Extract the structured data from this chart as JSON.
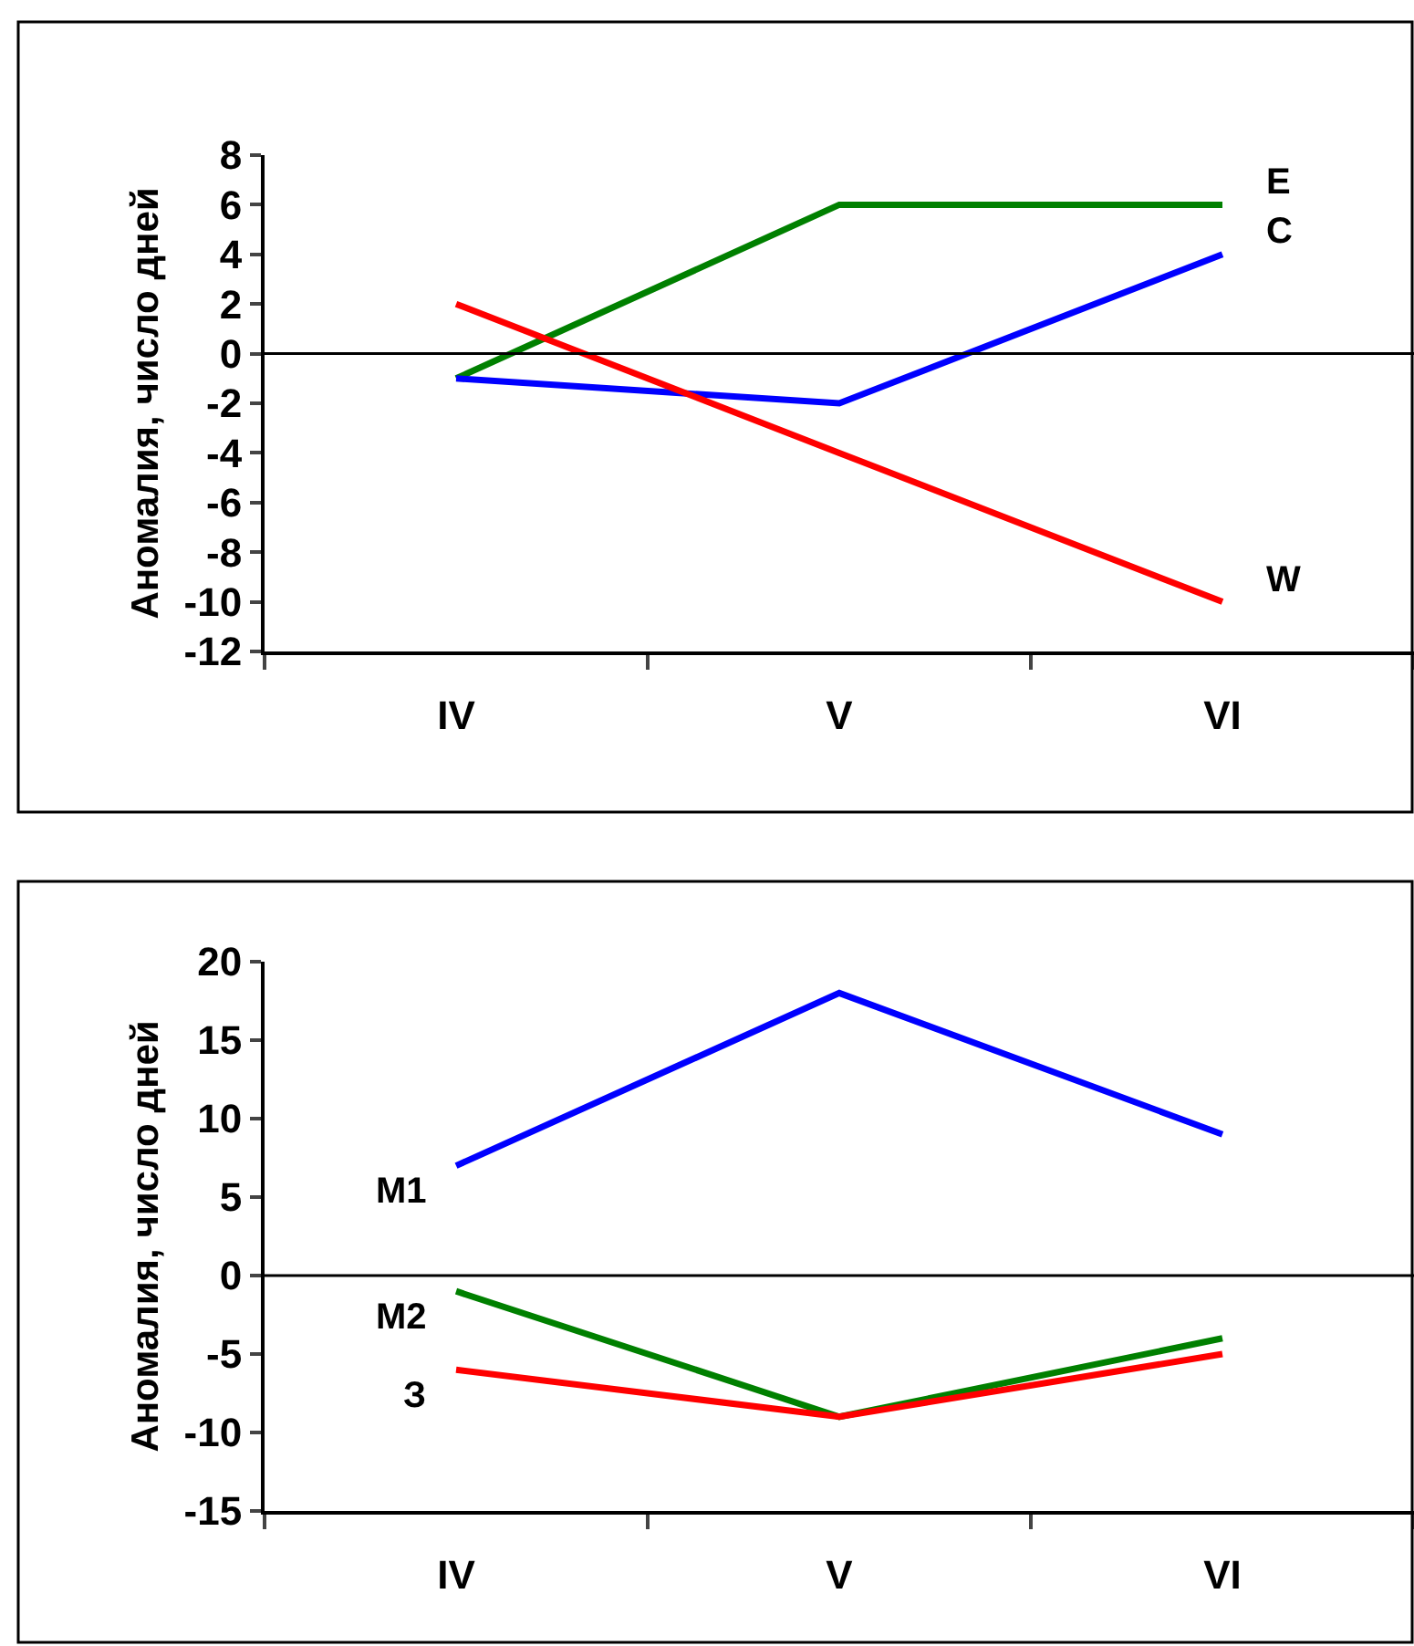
{
  "chart_data": [
    {
      "type": "line",
      "categories": [
        "IV",
        "V",
        "VI"
      ],
      "ylabel": "Аномалия, число дней",
      "ylim": [
        -12,
        8
      ],
      "yticks": [
        -12,
        -10,
        -8,
        -6,
        -4,
        -2,
        0,
        2,
        4,
        6,
        8
      ],
      "series": [
        {
          "name": "E",
          "color": "#008000",
          "values": [
            -1,
            6,
            6
          ]
        },
        {
          "name": "C",
          "color": "#0000ff",
          "values": [
            -1,
            -2,
            4
          ]
        },
        {
          "name": "W",
          "color": "#ff0000",
          "values": [
            2,
            -4,
            -10
          ]
        }
      ],
      "ref_lines": [
        {
          "axis": "y",
          "value": 0,
          "color": "#000000"
        }
      ]
    },
    {
      "type": "line",
      "categories": [
        "IV",
        "V",
        "VI"
      ],
      "ylabel": "Аномалия, число дней",
      "ylim": [
        -15,
        20
      ],
      "yticks": [
        -15,
        -10,
        -5,
        0,
        5,
        10,
        15,
        20
      ],
      "series": [
        {
          "name": "M1",
          "color": "#0000ff",
          "values": [
            7,
            18,
            9
          ]
        },
        {
          "name": "M2",
          "color": "#008000",
          "values": [
            -1,
            -9,
            -4
          ]
        },
        {
          "name": "З",
          "color": "#ff0000",
          "values": [
            -6,
            -9,
            -5
          ]
        }
      ],
      "ref_lines": [
        {
          "axis": "y",
          "value": 0,
          "color": "#000000"
        }
      ]
    }
  ]
}
